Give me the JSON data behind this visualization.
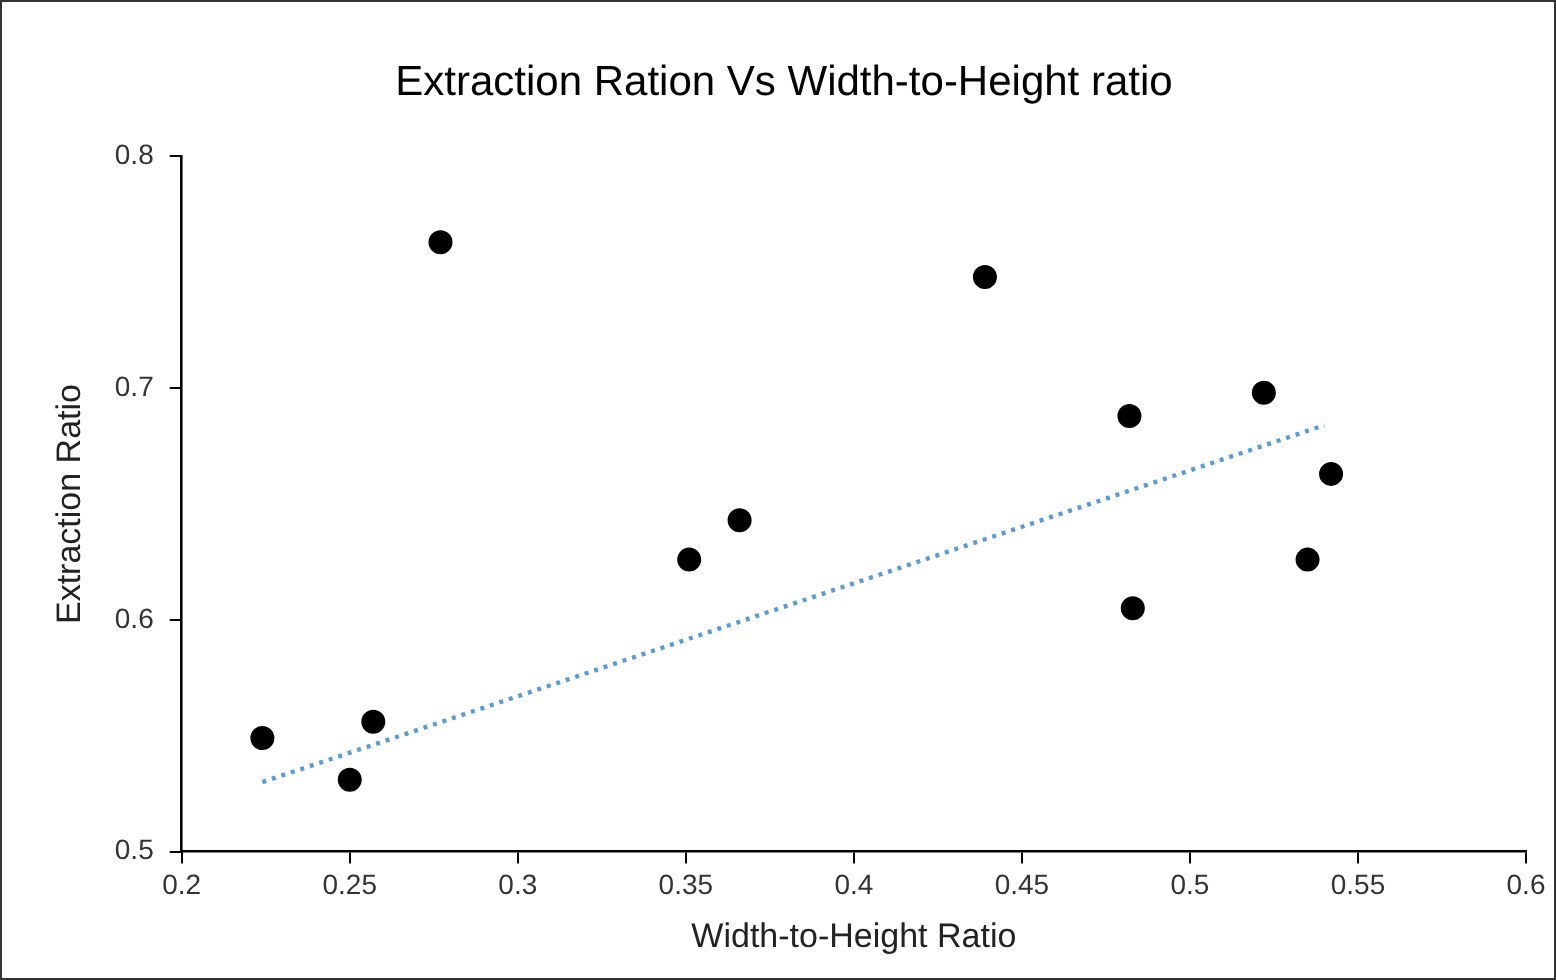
{
  "chart_data": {
    "type": "scatter",
    "title": "Extraction Ration Vs Width-to-Height ratio",
    "xlabel": "Width-to-Height Ratio",
    "ylabel": "Extraction Ratio",
    "x": [
      0.224,
      0.25,
      0.257,
      0.277,
      0.351,
      0.366,
      0.439,
      0.482,
      0.483,
      0.522,
      0.542,
      0.535
    ],
    "series": [
      {
        "color": "#000000",
        "values": [
          0.549,
          0.531,
          0.556,
          0.763,
          0.626,
          0.643,
          0.748,
          0.688,
          0.605,
          0.698,
          0.663,
          0.626
        ]
      },
      {
        "type": "line",
        "color": "#5b9bd5",
        "line_style": "dotted",
        "marker": "none",
        "x": [
          0.224,
          0.54
        ],
        "values": [
          0.53,
          0.684
        ]
      }
    ],
    "marker": "circle",
    "xlim": [
      0.2,
      0.6
    ],
    "xticks": [
      0.2,
      0.25,
      0.3,
      0.35,
      0.4,
      0.45,
      0.5,
      0.55,
      0.6
    ],
    "ylim": [
      0.5,
      0.8
    ],
    "yticks": [
      0.5,
      0.6,
      0.7,
      0.8
    ],
    "grid": false,
    "legend": false
  }
}
